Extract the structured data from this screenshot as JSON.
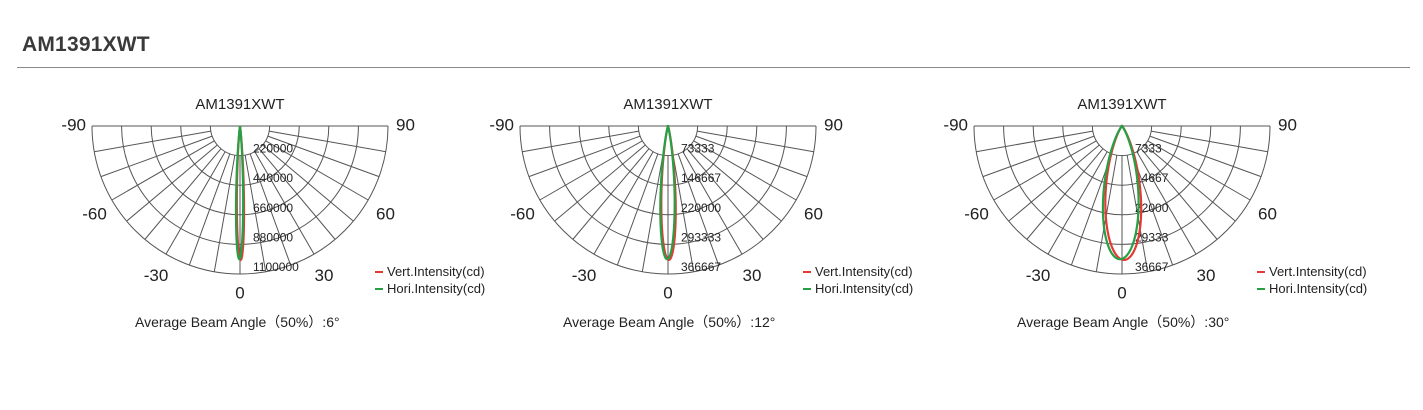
{
  "page_title": "AM1391XWT",
  "legend_colors": {
    "vertical": "#e53935",
    "horizontal": "#27a045"
  },
  "chart_data": [
    {
      "type": "polar",
      "title": "AM1391XWT",
      "angle_labels": [
        "-90",
        "-60",
        "-30",
        "0",
        "30",
        "60",
        "90"
      ],
      "angle_range_deg": [
        -90,
        90
      ],
      "radial_ticks": [
        "220000",
        "440000",
        "660000",
        "880000",
        "1100000"
      ],
      "radial_max": 1100000,
      "series": [
        {
          "name": "Vert.Intensity(cd)",
          "color": "#e53935",
          "beam_angle_deg": 6
        },
        {
          "name": "Hori.Intensity(cd)",
          "color": "#27a045",
          "beam_angle_deg": 6
        }
      ],
      "beam_label": "Average Beam Angle",
      "beam_pct": "（50%）:",
      "beam_value": "6°"
    },
    {
      "type": "polar",
      "title": "AM1391XWT",
      "angle_labels": [
        "-90",
        "-60",
        "-30",
        "0",
        "30",
        "60",
        "90"
      ],
      "angle_range_deg": [
        -90,
        90
      ],
      "radial_ticks": [
        "73333",
        "146667",
        "220000",
        "293333",
        "366667"
      ],
      "radial_max": 366667,
      "series": [
        {
          "name": "Vert.Intensity(cd)",
          "color": "#e53935",
          "beam_angle_deg": 12
        },
        {
          "name": "Hori.Intensity(cd)",
          "color": "#27a045",
          "beam_angle_deg": 12
        }
      ],
      "beam_label": "Average Beam Angle",
      "beam_pct": "（50%）:",
      "beam_value": "12°"
    },
    {
      "type": "polar",
      "title": "AM1391XWT",
      "angle_labels": [
        "-90",
        "-60",
        "-30",
        "0",
        "30",
        "60",
        "90"
      ],
      "angle_range_deg": [
        -90,
        90
      ],
      "radial_ticks": [
        "7333",
        "14667",
        "22000",
        "29333",
        "36667"
      ],
      "radial_max": 36667,
      "series": [
        {
          "name": "Vert.Intensity(cd)",
          "color": "#e53935",
          "beam_angle_deg": 30
        },
        {
          "name": "Hori.Intensity(cd)",
          "color": "#27a045",
          "beam_angle_deg": 30
        }
      ],
      "beam_label": "Average Beam Angle",
      "beam_pct": "（50%）:",
      "beam_value": "30°"
    }
  ]
}
